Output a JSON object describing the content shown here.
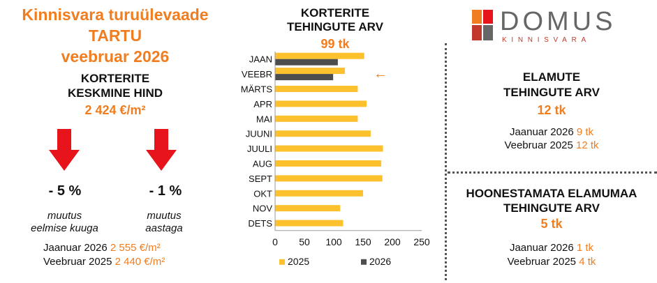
{
  "left": {
    "title_line1": "Kinnisvara turuülevaade",
    "title_line2": "TARTU",
    "title_line3": "veebruar 2026",
    "price_heading_line1": "KORTERITE",
    "price_heading_line2": "KESKMINE HIND",
    "price_value": "2 424 €/m²",
    "change1": {
      "value": "- 5 %",
      "note_line1": "muutus",
      "note_line2": "eelmise kuuga"
    },
    "change2": {
      "value": "- 1 %",
      "note_line1": "muutus",
      "note_line2": "aastaga"
    },
    "compare": [
      {
        "label": "Jaanuar 2026",
        "value": "2 555 €/m²"
      },
      {
        "label": "Veebruar 2025",
        "value": "2 440 €/m²"
      }
    ]
  },
  "chart_header": {
    "line1": "KORTERITE",
    "line2": "TEHINGUTE ARV",
    "value": "99 tk"
  },
  "chart_data": {
    "type": "bar",
    "orientation": "horizontal",
    "categories": [
      "JAAN",
      "VEEBR",
      "MÄRTS",
      "APR",
      "MAI",
      "JUUNI",
      "JUULI",
      "AUG",
      "SEPT",
      "OKT",
      "NOV",
      "DETS"
    ],
    "series": [
      {
        "name": "2025",
        "color": "#fcc12d",
        "values": [
          152,
          119,
          141,
          156,
          141,
          163,
          184,
          181,
          183,
          150,
          111,
          116
        ]
      },
      {
        "name": "2026",
        "color": "#4d4d4d",
        "values": [
          107,
          99,
          null,
          null,
          null,
          null,
          null,
          null,
          null,
          null,
          null,
          null
        ]
      }
    ],
    "xlim": [
      0,
      250
    ],
    "xticks": [
      0,
      50,
      100,
      150,
      200,
      250
    ],
    "legend": "bottom",
    "grid": false,
    "annotation": "←"
  },
  "logo": {
    "word": "DOMUS",
    "sub": "KINNISVARA"
  },
  "elamute": {
    "line1": "ELAMUTE",
    "line2": "TEHINGUTE ARV",
    "value": "12 tk",
    "compare": [
      {
        "label": "Jaanuar 2026",
        "value": "9 tk"
      },
      {
        "label": "Veebruar 2025",
        "value": "12 tk"
      }
    ]
  },
  "maa": {
    "line1": "HOONESTAMATA ELAMUMAA",
    "line2": "TEHINGUTE ARV",
    "value": "5 tk",
    "compare": [
      {
        "label": "Jaanuar 2026",
        "value": "1 tk"
      },
      {
        "label": "Veebruar 2025",
        "value": "4 tk"
      }
    ]
  },
  "colors": {
    "accent": "#f07d1f",
    "arrow": "#e8141b",
    "bar_2025": "#fcc12d",
    "bar_2026": "#4d4d4d"
  }
}
